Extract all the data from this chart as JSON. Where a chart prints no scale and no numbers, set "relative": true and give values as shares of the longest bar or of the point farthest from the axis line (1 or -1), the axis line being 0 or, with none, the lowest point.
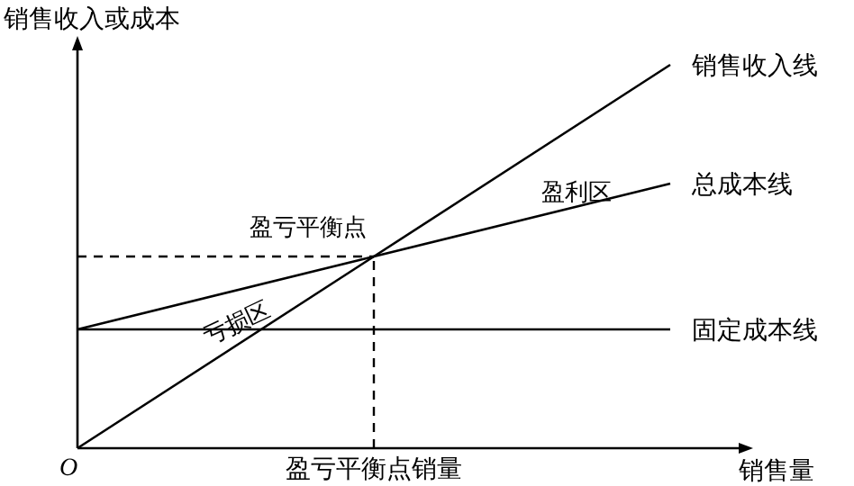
{
  "chart_data": {
    "type": "line",
    "relative": true,
    "xlabel": "销售量",
    "ylabel": "销售收入或成本",
    "categories": [
      null,
      null,
      null
    ],
    "series": [
      {
        "name": "销售收入线",
        "color": "#000000",
        "values": [
          0,
          0.5,
          1
        ]
      },
      {
        "name": "总成本线",
        "color": "#000000",
        "values": [
          0.31,
          0.5,
          0.69
        ]
      },
      {
        "name": "固定成本线",
        "color": "#000000",
        "values": [
          0.31,
          0.31,
          0.31
        ]
      }
    ],
    "ref_lines": [
      {
        "axis": "x",
        "label": "盈亏平衡点销量",
        "line_style": "dashed"
      },
      {
        "axis": "y",
        "value": 0.5,
        "line_style": "dashed"
      }
    ],
    "annotations": [
      "盈亏平衡点",
      "亏损区",
      "盈利区",
      "O"
    ],
    "legend": false,
    "grid": false,
    "marker": "none",
    "line_style": "solid"
  }
}
